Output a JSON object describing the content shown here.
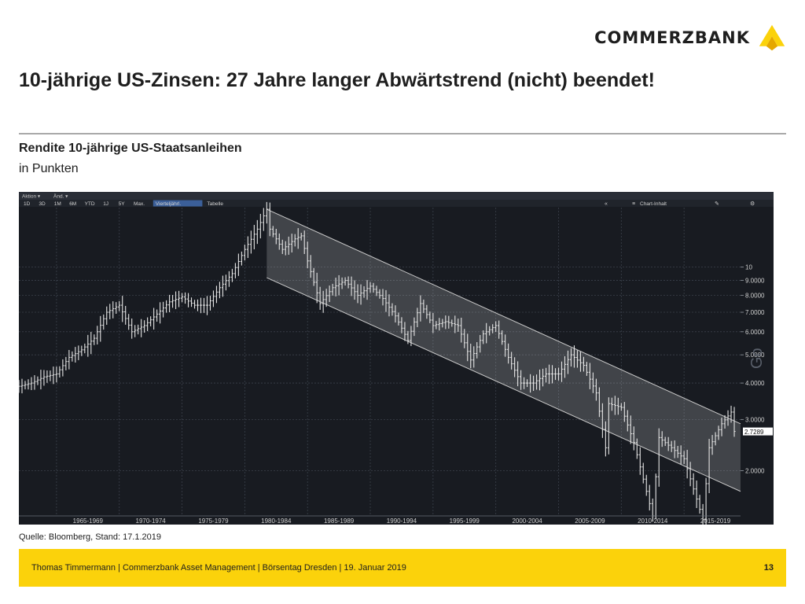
{
  "brand": {
    "name": "COMMERZBANK",
    "accent": "#fbd20b"
  },
  "title": "10-jährige US-Zinsen: 27 Jahre langer Abwärtstrend (nicht) beendet!",
  "subtitle": "Rendite 10-jährige US-Staatsanleihen",
  "unit_label": "in Punkten",
  "source": "Quelle: Bloomberg, Stand: 17.1.2019",
  "footer": {
    "text": "Thomas Timmermann | Commerzbank Asset Management | Börsentag Dresden | 19. Januar 2019",
    "page": "13"
  },
  "terminal": {
    "menu": [
      "Aktion",
      "Änd."
    ],
    "ranges": [
      "1D",
      "3D",
      "1M",
      "6M",
      "YTD",
      "1J",
      "5Y",
      "Max.",
      "Vierteljährl.",
      "Tabelle"
    ],
    "active_range": "Vierteljährl.",
    "right_controls": [
      "Chart-Inhalt"
    ],
    "icons": [
      "collapse-icon",
      "chart-content-icon",
      "edit-icon",
      "settings-icon"
    ],
    "watermark": "Go"
  },
  "chart_data": {
    "type": "line",
    "subtype": "quarterly-bars",
    "scale": "log",
    "ylim": [
      1.4,
      16
    ],
    "xlim": [
      1962,
      2019.5
    ],
    "y_ticks": [
      "10",
      "9.0000",
      "8.0000",
      "7.0000",
      "6.0000",
      "5.0000",
      "4.0000",
      "3.0000",
      "2.0000"
    ],
    "x_ticks": [
      "1965-1969",
      "1970-1974",
      "1975-1979",
      "1980-1984",
      "1985-1989",
      "1990-1994",
      "1995-1999",
      "2000-2004",
      "2005-2009",
      "2010-2014",
      "2015-2019"
    ],
    "last_value": "2.7289",
    "series": [
      {
        "x": [
          1962,
          1963,
          1964,
          1965,
          1966,
          1967,
          1968,
          1969,
          1970,
          1971,
          1972,
          1973,
          1974,
          1975,
          1976,
          1977,
          1978,
          1979,
          1980,
          1981,
          1981.75,
          1982,
          1982.5,
          1983,
          1984,
          1984.5,
          1985,
          1986,
          1987,
          1988,
          1989,
          1990,
          1991,
          1992,
          1993,
          1994,
          1995,
          1996,
          1997,
          1998,
          1999,
          2000,
          2001,
          2002,
          2003,
          2004,
          2005,
          2006,
          2007,
          2008,
          2008.9,
          2009,
          2010,
          2011,
          2012,
          2012.5,
          2013,
          2014,
          2015,
          2016,
          2016.5,
          2017,
          2018,
          2018.8,
          2019
        ],
        "values": [
          3.9,
          4.0,
          4.2,
          4.3,
          4.9,
          5.2,
          5.7,
          7.0,
          7.4,
          6.0,
          6.3,
          6.9,
          7.6,
          7.9,
          7.4,
          7.4,
          8.5,
          9.5,
          11.5,
          13.5,
          15.8,
          13.5,
          12.5,
          11.5,
          12.5,
          12.8,
          10.5,
          7.5,
          8.5,
          9.0,
          8.0,
          8.6,
          7.8,
          6.8,
          5.6,
          7.5,
          6.3,
          6.5,
          6.3,
          4.8,
          5.9,
          6.3,
          4.9,
          4.0,
          4.0,
          4.3,
          4.3,
          5.0,
          4.6,
          3.7,
          2.2,
          3.4,
          3.3,
          2.5,
          1.7,
          1.4,
          2.6,
          2.4,
          2.2,
          1.6,
          1.36,
          2.4,
          2.9,
          3.2,
          2.73
        ]
      }
    ],
    "trend_channel": {
      "upper": {
        "x": [
          1981.75,
          2019.5
        ],
        "values": [
          15.8,
          2.9
        ]
      },
      "lower": {
        "x": [
          1981.75,
          2019.5
        ],
        "values": [
          9.2,
          1.7
        ]
      }
    }
  }
}
